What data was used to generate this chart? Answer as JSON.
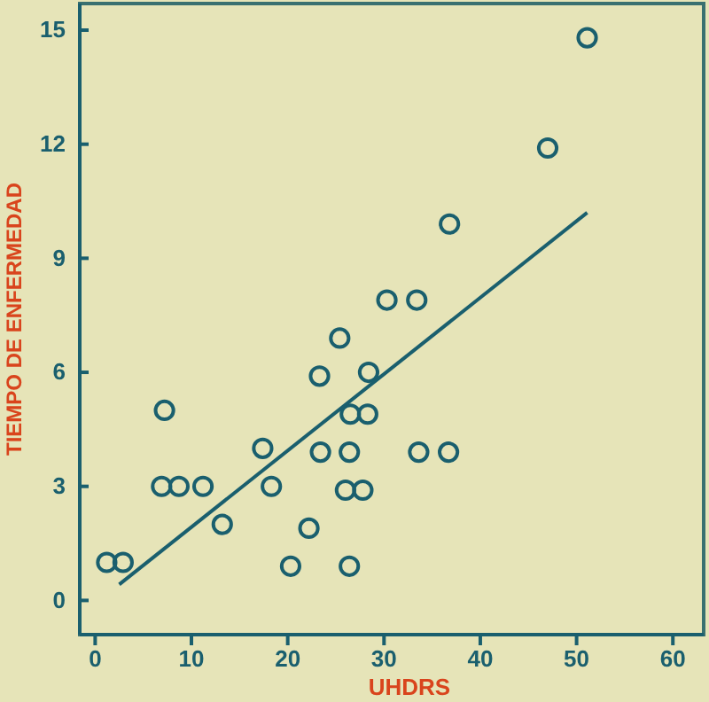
{
  "chart_data": {
    "type": "scatter",
    "xlabel": "UHDRS",
    "ylabel": "TIEMPO DE ENFERMEDAD",
    "xlim": [
      -1.6,
      63.2
    ],
    "ylim": [
      -0.9,
      15.7
    ],
    "xticks": [
      0,
      10,
      20,
      30,
      40,
      50,
      60
    ],
    "yticks": [
      0,
      3,
      6,
      9,
      12,
      15
    ],
    "grid": false,
    "series": [
      {
        "marker": "circle",
        "color": "#1a5f6e",
        "x": [
          1.2,
          2.9,
          7.2,
          6.9,
          8.7,
          11.2,
          13.2,
          17.4,
          18.3,
          20.3,
          22.2,
          23.4,
          23.3,
          25.4,
          26.5,
          28.3,
          28.4,
          26.4,
          26.0,
          27.8,
          26.4,
          33.6,
          36.7,
          51.1,
          47.0,
          36.8,
          30.3,
          33.4
        ],
        "values": [
          1,
          1,
          5,
          3,
          3,
          3,
          2,
          4,
          3,
          0.9,
          1.9,
          3.9,
          5.9,
          6.9,
          4.9,
          4.9,
          6,
          3.9,
          2.9,
          2.9,
          0.9,
          3.9,
          3.9,
          14.8,
          11.9,
          9.9,
          7.9,
          7.9
        ]
      },
      {
        "type": "line",
        "marker": "none",
        "color": "#1a5f6e",
        "x": [
          2.5,
          51.1
        ],
        "values": [
          0.42,
          10.2
        ]
      }
    ]
  }
}
